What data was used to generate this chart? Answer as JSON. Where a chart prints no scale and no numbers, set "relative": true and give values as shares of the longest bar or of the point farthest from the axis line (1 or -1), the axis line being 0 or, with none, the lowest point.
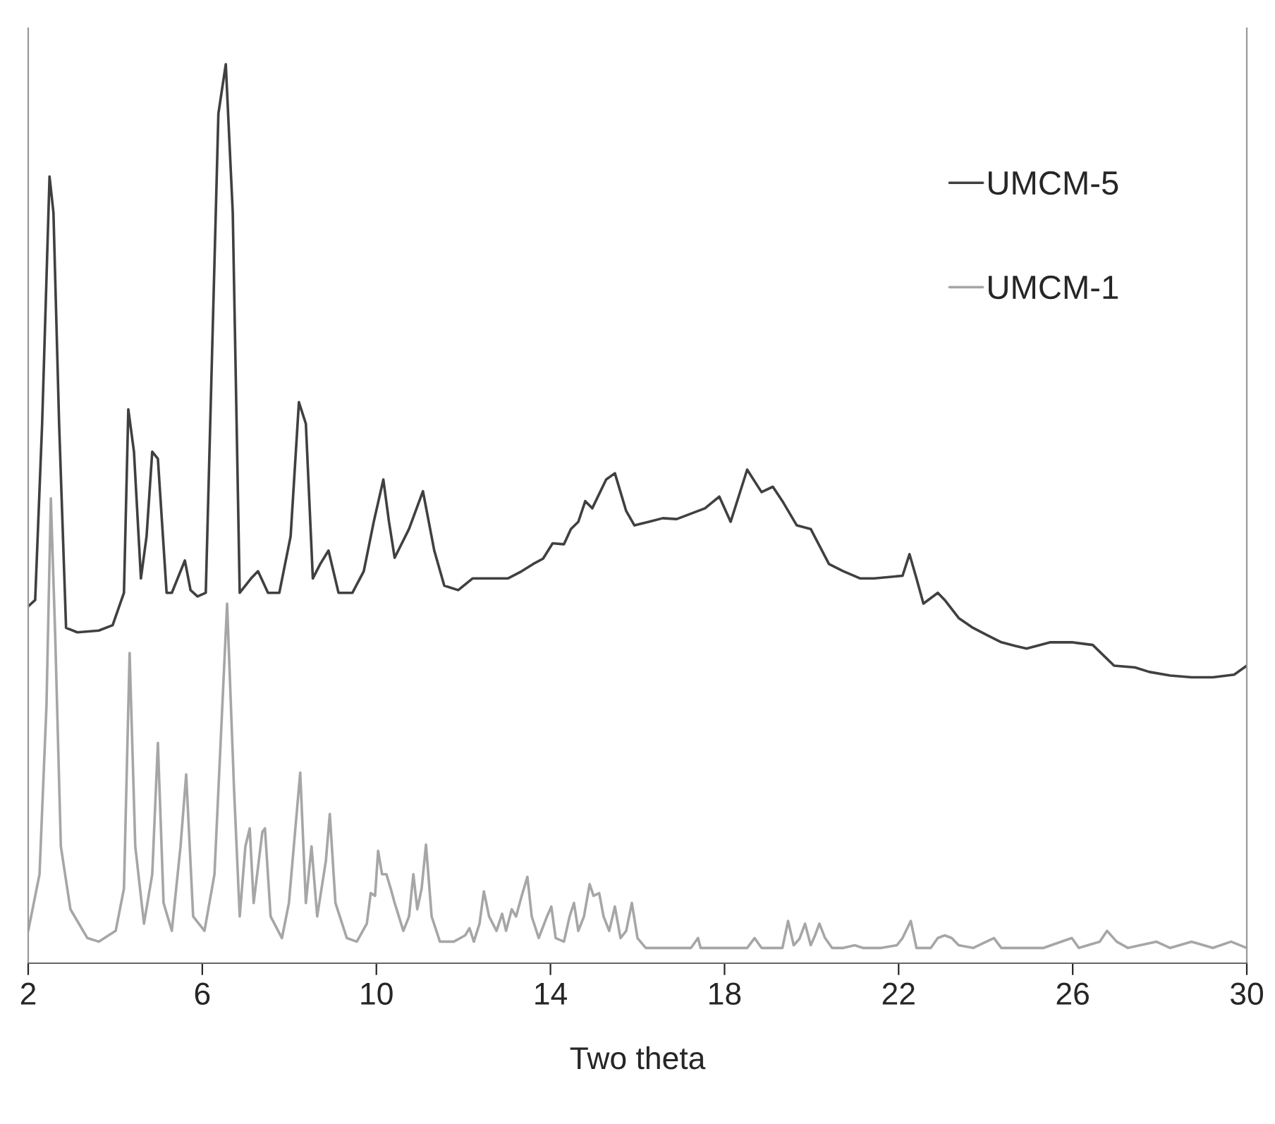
{
  "chart_data": {
    "type": "line",
    "relative": true,
    "xlabel": "Two theta",
    "xlim": [
      2,
      30
    ],
    "xticks": [
      2,
      6,
      10,
      14,
      18,
      22,
      26,
      30
    ],
    "legend": "top right",
    "grid": false,
    "tick_labels": "x",
    "series": [
      {
        "name": "UMCM-5",
        "color": "#404040",
        "x": [
          2.0,
          2.16,
          2.32,
          2.49,
          2.58,
          2.71,
          2.87,
          3.13,
          3.62,
          3.94,
          4.2,
          4.3,
          4.43,
          4.59,
          4.72,
          4.85,
          4.98,
          5.18,
          5.3,
          5.6,
          5.73,
          5.89,
          6.08,
          6.37,
          6.54,
          6.7,
          6.86,
          7.12,
          7.28,
          7.51,
          7.77,
          8.03,
          8.22,
          8.38,
          8.54,
          8.71,
          8.9,
          9.13,
          9.45,
          9.71,
          9.94,
          10.16,
          10.29,
          10.42,
          10.75,
          11.07,
          11.33,
          11.56,
          11.88,
          12.21,
          12.43,
          12.69,
          13.02,
          13.34,
          13.6,
          13.83,
          14.05,
          14.31,
          14.47,
          14.64,
          14.8,
          14.96,
          15.28,
          15.48,
          15.74,
          15.93,
          16.26,
          16.58,
          16.9,
          17.55,
          17.88,
          18.14,
          18.52,
          18.85,
          19.11,
          19.33,
          19.66,
          19.98,
          20.4,
          20.73,
          21.12,
          21.44,
          22.09,
          22.25,
          22.41,
          22.57,
          22.9,
          23.06,
          23.38,
          23.71,
          24.03,
          24.36,
          24.68,
          24.94,
          25.17,
          25.49,
          25.98,
          26.46,
          26.95,
          27.43,
          27.76,
          28.24,
          28.73,
          29.22,
          29.71,
          30.0
        ],
        "values": [
          0.397,
          0.404,
          0.6,
          0.875,
          0.835,
          0.6,
          0.373,
          0.368,
          0.37,
          0.376,
          0.412,
          0.616,
          0.569,
          0.428,
          0.475,
          0.569,
          0.561,
          0.412,
          0.412,
          0.448,
          0.415,
          0.408,
          0.412,
          0.945,
          1.0,
          0.835,
          0.412,
          0.428,
          0.436,
          0.412,
          0.412,
          0.475,
          0.624,
          0.6,
          0.428,
          0.444,
          0.459,
          0.412,
          0.412,
          0.436,
          0.491,
          0.538,
          0.491,
          0.451,
          0.483,
          0.525,
          0.459,
          0.42,
          0.415,
          0.428,
          0.428,
          0.428,
          0.428,
          0.436,
          0.444,
          0.45,
          0.467,
          0.466,
          0.483,
          0.491,
          0.514,
          0.506,
          0.538,
          0.545,
          0.503,
          0.487,
          0.491,
          0.495,
          0.494,
          0.506,
          0.519,
          0.491,
          0.549,
          0.524,
          0.53,
          0.514,
          0.487,
          0.483,
          0.444,
          0.436,
          0.428,
          0.428,
          0.431,
          0.455,
          0.428,
          0.4,
          0.412,
          0.404,
          0.384,
          0.373,
          0.365,
          0.357,
          0.353,
          0.35,
          0.353,
          0.357,
          0.357,
          0.354,
          0.331,
          0.329,
          0.324,
          0.32,
          0.318,
          0.318,
          0.321,
          0.331
        ]
      },
      {
        "name": "UMCM-1",
        "color": "#a6a6a6",
        "x": [
          2.0,
          2.26,
          2.42,
          2.52,
          2.62,
          2.75,
          2.97,
          3.36,
          3.62,
          4.01,
          4.2,
          4.33,
          4.46,
          4.66,
          4.85,
          4.98,
          5.11,
          5.3,
          5.5,
          5.63,
          5.79,
          6.05,
          6.28,
          6.57,
          6.73,
          6.86,
          6.99,
          7.09,
          7.18,
          7.38,
          7.44,
          7.57,
          7.83,
          7.99,
          8.25,
          8.38,
          8.51,
          8.64,
          8.84,
          8.93,
          9.06,
          9.32,
          9.55,
          9.78,
          9.87,
          9.97,
          10.04,
          10.13,
          10.23,
          10.33,
          10.42,
          10.62,
          10.75,
          10.85,
          10.94,
          11.04,
          11.14,
          11.27,
          11.46,
          11.78,
          12.04,
          12.14,
          12.24,
          12.37,
          12.47,
          12.59,
          12.76,
          12.89,
          12.98,
          13.11,
          13.21,
          13.34,
          13.47,
          13.57,
          13.73,
          13.92,
          14.02,
          14.12,
          14.31,
          14.44,
          14.54,
          14.64,
          14.77,
          14.9,
          14.99,
          15.12,
          15.22,
          15.35,
          15.48,
          15.61,
          15.74,
          15.87,
          16.0,
          16.19,
          16.58,
          17.23,
          17.39,
          17.45,
          17.88,
          18.52,
          18.69,
          18.85,
          19.33,
          19.46,
          19.59,
          19.72,
          19.85,
          19.98,
          20.08,
          20.18,
          20.31,
          20.47,
          20.73,
          20.99,
          21.18,
          21.6,
          21.96,
          22.09,
          22.28,
          22.41,
          22.74,
          22.9,
          23.06,
          23.22,
          23.38,
          23.71,
          24.19,
          24.36,
          25.33,
          25.98,
          26.14,
          26.62,
          26.79,
          27.01,
          27.27,
          27.92,
          28.24,
          28.73,
          29.22,
          29.64,
          30.0
        ],
        "values": [
          0.036,
          0.099,
          0.287,
          0.517,
          0.365,
          0.13,
          0.06,
          0.028,
          0.024,
          0.036,
          0.083,
          0.345,
          0.13,
          0.044,
          0.099,
          0.245,
          0.067,
          0.036,
          0.13,
          0.21,
          0.052,
          0.036,
          0.099,
          0.4,
          0.193,
          0.052,
          0.13,
          0.15,
          0.067,
          0.146,
          0.15,
          0.052,
          0.028,
          0.067,
          0.212,
          0.067,
          0.13,
          0.052,
          0.114,
          0.166,
          0.067,
          0.028,
          0.024,
          0.044,
          0.078,
          0.075,
          0.125,
          0.099,
          0.099,
          0.083,
          0.067,
          0.036,
          0.052,
          0.099,
          0.06,
          0.083,
          0.132,
          0.052,
          0.024,
          0.024,
          0.031,
          0.039,
          0.024,
          0.044,
          0.08,
          0.052,
          0.036,
          0.055,
          0.036,
          0.06,
          0.052,
          0.075,
          0.096,
          0.052,
          0.028,
          0.052,
          0.063,
          0.028,
          0.024,
          0.052,
          0.067,
          0.036,
          0.052,
          0.088,
          0.075,
          0.078,
          0.052,
          0.036,
          0.063,
          0.028,
          0.036,
          0.067,
          0.028,
          0.017,
          0.017,
          0.017,
          0.028,
          0.017,
          0.017,
          0.017,
          0.028,
          0.017,
          0.017,
          0.047,
          0.02,
          0.027,
          0.044,
          0.02,
          0.031,
          0.044,
          0.028,
          0.017,
          0.017,
          0.02,
          0.017,
          0.017,
          0.02,
          0.028,
          0.047,
          0.017,
          0.017,
          0.028,
          0.031,
          0.028,
          0.02,
          0.017,
          0.028,
          0.017,
          0.017,
          0.028,
          0.017,
          0.024,
          0.036,
          0.024,
          0.017,
          0.024,
          0.017,
          0.024,
          0.017,
          0.024,
          0.017
        ]
      }
    ]
  }
}
